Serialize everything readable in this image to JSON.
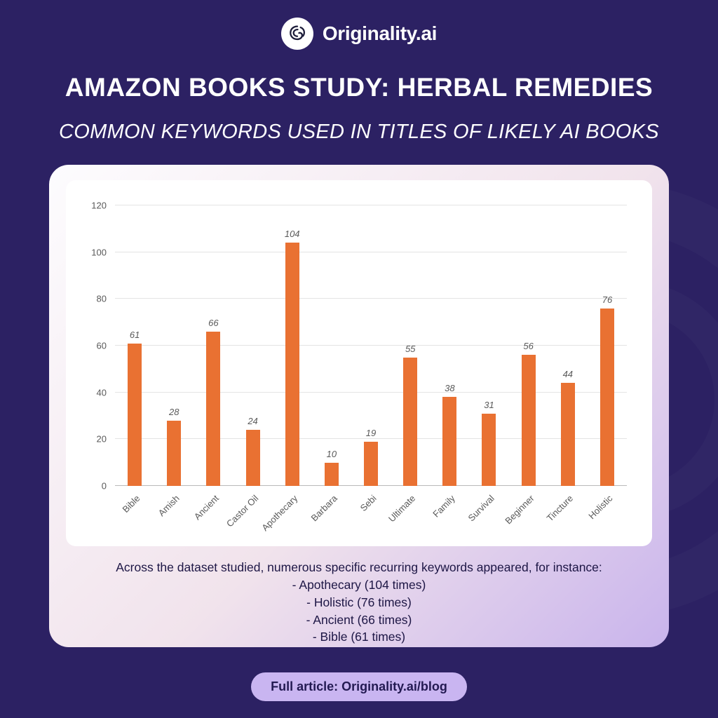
{
  "colors": {
    "background": "#2c2163",
    "bar": "#e97132",
    "badge_background": "#c9b5f1",
    "card_gradient_start": "#fdfcfe",
    "card_gradient_end": "#c9b4ec"
  },
  "logo": {
    "text": "Originality.ai",
    "icon": "brain-icon"
  },
  "header": {
    "title": "AMAZON BOOKS STUDY: HERBAL REMEDIES",
    "subtitle": "COMMON KEYWORDS USED IN TITLES OF LIKELY AI BOOKS"
  },
  "chart_data": {
    "type": "bar",
    "categories": [
      "Bible",
      "Amish",
      "Ancient",
      "Castor Oil",
      "Apothecary",
      "Barbara",
      "Sebi",
      "Ultimate",
      "Family",
      "Survival",
      "Beginner",
      "Tincture",
      "Holistic"
    ],
    "values": [
      61,
      28,
      66,
      24,
      104,
      10,
      19,
      55,
      38,
      31,
      56,
      44,
      76
    ],
    "title": "",
    "xlabel": "",
    "ylabel": "",
    "ylim": [
      0,
      120
    ],
    "ytick_interval": 20,
    "yticks": [
      0,
      20,
      40,
      60,
      80,
      100,
      120
    ],
    "bar_color": "#e97132",
    "grid": true,
    "legend": false,
    "value_labels_visible": true
  },
  "summary": {
    "intro": "Across the dataset studied, numerous specific recurring keywords appeared, for instance:",
    "items": [
      "- Apothecary (104 times)",
      "- Holistic (76 times)",
      "- Ancient (66 times)",
      "- Bible (61 times)"
    ]
  },
  "footer": {
    "badge": "Full article: Originality.ai/blog"
  }
}
